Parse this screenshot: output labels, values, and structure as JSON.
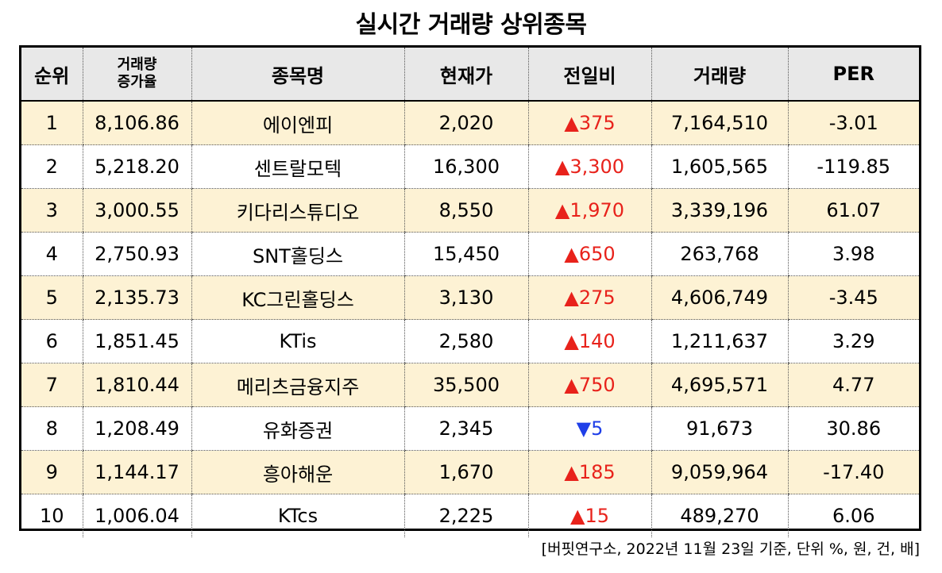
{
  "title": "실시간 거래량 상위종목",
  "columns": [
    "순위",
    "거래량\n증가율",
    "종목명",
    "현재가",
    "전일비",
    "거래량",
    "PER"
  ],
  "colors": {
    "row_highlight": "#fdf2d4",
    "header_bg": "#e8e8e8",
    "up": "#e8221b",
    "down": "#1f3fe8"
  },
  "rows": [
    {
      "rank": "1",
      "increase": "8,106.86",
      "name": "에이엔피",
      "price": "2,020",
      "change": "▲375",
      "dir": "up",
      "volume": "7,164,510",
      "per": "-3.01"
    },
    {
      "rank": "2",
      "increase": "5,218.20",
      "name": "센트랄모텍",
      "price": "16,300",
      "change": "▲3,300",
      "dir": "up",
      "volume": "1,605,565",
      "per": "-119.85"
    },
    {
      "rank": "3",
      "increase": "3,000.55",
      "name": "키다리스튜디오",
      "price": "8,550",
      "change": "▲1,970",
      "dir": "up",
      "volume": "3,339,196",
      "per": "61.07"
    },
    {
      "rank": "4",
      "increase": "2,750.93",
      "name": "SNT홀딩스",
      "price": "15,450",
      "change": "▲650",
      "dir": "up",
      "volume": "263,768",
      "per": "3.98"
    },
    {
      "rank": "5",
      "increase": "2,135.73",
      "name": "KC그린홀딩스",
      "price": "3,130",
      "change": "▲275",
      "dir": "up",
      "volume": "4,606,749",
      "per": "-3.45"
    },
    {
      "rank": "6",
      "increase": "1,851.45",
      "name": "KTis",
      "price": "2,580",
      "change": "▲140",
      "dir": "up",
      "volume": "1,211,637",
      "per": "3.29"
    },
    {
      "rank": "7",
      "increase": "1,810.44",
      "name": "메리츠금융지주",
      "price": "35,500",
      "change": "▲750",
      "dir": "up",
      "volume": "4,695,571",
      "per": "4.77"
    },
    {
      "rank": "8",
      "increase": "1,208.49",
      "name": "유화증권",
      "price": "2,345",
      "change": "▼5",
      "dir": "down",
      "volume": "91,673",
      "per": "30.86"
    },
    {
      "rank": "9",
      "increase": "1,144.17",
      "name": "흥아해운",
      "price": "1,670",
      "change": "▲185",
      "dir": "up",
      "volume": "9,059,964",
      "per": "-17.40"
    },
    {
      "rank": "10",
      "increase": "1,006.04",
      "name": "KTcs",
      "price": "2,225",
      "change": "▲15",
      "dir": "up",
      "volume": "489,270",
      "per": "6.06"
    }
  ],
  "footnote": "[버핏연구소, 2022년 11월 23일 기준, 단위 %, 원, 건, 배]"
}
